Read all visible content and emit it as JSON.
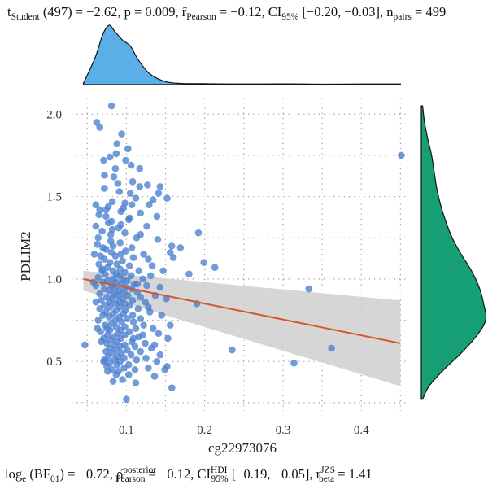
{
  "chart_data": {
    "type": "scatter",
    "xlabel": "cg22973076",
    "ylabel": "PDLIM2",
    "xlim": [
      0.03,
      0.46
    ],
    "ylim": [
      0.2,
      2.1
    ],
    "xticks": [
      0.1,
      0.2,
      0.3,
      0.4
    ],
    "yticks": [
      0.5,
      1.0,
      1.5,
      2.0
    ],
    "xtick_labels": [
      "0.1",
      "0.2",
      "0.3",
      "0.4"
    ],
    "ytick_labels": [
      "0.5",
      "1.0",
      "1.5",
      "2.0"
    ],
    "grid": true,
    "point_color": "#4a7fd0",
    "line_color": "#d2582a",
    "band_color": "#cfcfcf",
    "x_marginal_color": "#5ab0e6",
    "y_marginal_color": "#169e74",
    "regression": {
      "x": [
        0.045,
        0.45
      ],
      "y": [
        1.0,
        0.61
      ],
      "ci_lower": [
        0.93,
        0.35
      ],
      "ci_upper": [
        1.05,
        0.87
      ]
    },
    "x_density": {
      "x": [
        0.045,
        0.06,
        0.07,
        0.078,
        0.085,
        0.095,
        0.105,
        0.115,
        0.13,
        0.15,
        0.17,
        0.2,
        0.25,
        0.3,
        0.35,
        0.4,
        0.45
      ],
      "density": [
        0.02,
        0.45,
        0.85,
        1.0,
        0.9,
        0.75,
        0.65,
        0.42,
        0.18,
        0.05,
        0.02,
        0.015,
        0.01,
        0.012,
        0.008,
        0.01,
        0.01
      ]
    },
    "y_density": {
      "y": [
        0.27,
        0.35,
        0.45,
        0.55,
        0.65,
        0.75,
        0.85,
        0.95,
        1.05,
        1.15,
        1.25,
        1.35,
        1.45,
        1.55,
        1.65,
        1.75,
        1.85,
        1.95,
        2.05
      ],
      "density": [
        0.02,
        0.12,
        0.35,
        0.62,
        0.85,
        1.0,
        0.97,
        0.9,
        0.78,
        0.62,
        0.48,
        0.38,
        0.3,
        0.24,
        0.2,
        0.16,
        0.1,
        0.05,
        0.02
      ]
    },
    "points": [
      [
        0.081,
        2.05
      ],
      [
        0.062,
        1.95
      ],
      [
        0.066,
        1.92
      ],
      [
        0.094,
        1.88
      ],
      [
        0.088,
        1.82
      ],
      [
        0.102,
        1.79
      ],
      [
        0.087,
        1.76
      ],
      [
        0.079,
        1.74
      ],
      [
        0.099,
        1.72
      ],
      [
        0.071,
        1.72
      ],
      [
        0.106,
        1.69
      ],
      [
        0.117,
        1.67
      ],
      [
        0.086,
        1.67
      ],
      [
        0.072,
        1.63
      ],
      [
        0.108,
        1.59
      ],
      [
        0.089,
        1.58
      ],
      [
        0.127,
        1.57
      ],
      [
        0.143,
        1.56
      ],
      [
        0.072,
        1.55
      ],
      [
        0.091,
        1.53
      ],
      [
        0.141,
        1.52
      ],
      [
        0.152,
        1.49
      ],
      [
        0.112,
        1.49
      ],
      [
        0.134,
        1.48
      ],
      [
        0.082,
        1.47
      ],
      [
        0.098,
        1.46
      ],
      [
        0.107,
        1.45
      ],
      [
        0.061,
        1.45
      ],
      [
        0.077,
        1.44
      ],
      [
        0.096,
        1.43
      ],
      [
        0.074,
        1.42
      ],
      [
        0.066,
        1.42
      ],
      [
        0.093,
        1.41
      ],
      [
        0.118,
        1.4
      ],
      [
        0.065,
        1.39
      ],
      [
        0.074,
        1.38
      ],
      [
        0.104,
        1.37
      ],
      [
        0.103,
        1.36
      ],
      [
        0.081,
        1.35
      ],
      [
        0.077,
        1.34
      ],
      [
        0.093,
        1.33
      ],
      [
        0.061,
        1.32
      ],
      [
        0.09,
        1.31
      ],
      [
        0.082,
        1.3
      ],
      [
        0.069,
        1.29
      ],
      [
        0.098,
        1.28
      ],
      [
        0.192,
        1.28
      ],
      [
        0.08,
        1.27
      ],
      [
        0.118,
        1.27
      ],
      [
        0.064,
        1.25
      ],
      [
        0.14,
        1.24
      ],
      [
        0.08,
        1.23
      ],
      [
        0.092,
        1.22
      ],
      [
        0.063,
        1.21
      ],
      [
        0.083,
        1.2
      ],
      [
        0.07,
        1.19
      ],
      [
        0.107,
        1.19
      ],
      [
        0.074,
        1.18
      ],
      [
        0.099,
        1.17
      ],
      [
        0.081,
        1.16
      ],
      [
        0.156,
        1.16
      ],
      [
        0.093,
        1.15
      ],
      [
        0.067,
        1.14
      ],
      [
        0.086,
        1.14
      ],
      [
        0.109,
        1.13
      ],
      [
        0.072,
        1.12
      ],
      [
        0.128,
        1.12
      ],
      [
        0.095,
        1.11
      ],
      [
        0.079,
        1.1
      ],
      [
        0.199,
        1.1
      ],
      [
        0.16,
        1.13
      ],
      [
        0.088,
        1.09
      ],
      [
        0.065,
        1.09
      ],
      [
        0.104,
        1.08
      ],
      [
        0.133,
        1.08
      ],
      [
        0.213,
        1.07
      ],
      [
        0.076,
        1.07
      ],
      [
        0.092,
        1.06
      ],
      [
        0.083,
        1.05
      ],
      [
        0.069,
        1.05
      ],
      [
        0.116,
        1.05
      ],
      [
        0.098,
        1.04
      ],
      [
        0.087,
        1.03
      ],
      [
        0.18,
        1.03
      ],
      [
        0.073,
        1.03
      ],
      [
        0.106,
        1.02
      ],
      [
        0.091,
        1.02
      ],
      [
        0.064,
        1.01
      ],
      [
        0.083,
        1.0
      ],
      [
        0.121,
        1.0
      ],
      [
        0.095,
        1.0
      ],
      [
        0.076,
        0.99
      ],
      [
        0.101,
        0.99
      ],
      [
        0.087,
        0.98
      ],
      [
        0.07,
        0.98
      ],
      [
        0.11,
        0.97
      ],
      [
        0.094,
        0.97
      ],
      [
        0.081,
        0.96
      ],
      [
        0.061,
        0.96
      ],
      [
        0.126,
        0.96
      ],
      [
        0.099,
        0.95
      ],
      [
        0.085,
        0.95
      ],
      [
        0.072,
        0.94
      ],
      [
        0.107,
        0.94
      ],
      [
        0.091,
        0.93
      ],
      [
        0.333,
        0.94
      ],
      [
        0.078,
        0.93
      ],
      [
        0.114,
        0.92
      ],
      [
        0.097,
        0.92
      ],
      [
        0.084,
        0.91
      ],
      [
        0.066,
        0.91
      ],
      [
        0.102,
        0.9
      ],
      [
        0.089,
        0.9
      ],
      [
        0.075,
        0.89
      ],
      [
        0.118,
        0.89
      ],
      [
        0.095,
        0.88
      ],
      [
        0.082,
        0.88
      ],
      [
        0.068,
        0.87
      ],
      [
        0.108,
        0.87
      ],
      [
        0.091,
        0.86
      ],
      [
        0.078,
        0.86
      ],
      [
        0.124,
        0.86
      ],
      [
        0.098,
        0.85
      ],
      [
        0.086,
        0.85
      ],
      [
        0.072,
        0.84
      ],
      [
        0.19,
        0.85
      ],
      [
        0.104,
        0.84
      ],
      [
        0.092,
        0.83
      ],
      [
        0.079,
        0.83
      ],
      [
        0.115,
        0.82
      ],
      [
        0.066,
        0.82
      ],
      [
        0.099,
        0.81
      ],
      [
        0.087,
        0.81
      ],
      [
        0.074,
        0.8
      ],
      [
        0.13,
        0.8
      ],
      [
        0.096,
        0.79
      ],
      [
        0.083,
        0.79
      ],
      [
        0.108,
        0.78
      ],
      [
        0.07,
        0.78
      ],
      [
        0.091,
        0.77
      ],
      [
        0.078,
        0.77
      ],
      [
        0.118,
        0.76
      ],
      [
        0.101,
        0.76
      ],
      [
        0.086,
        0.75
      ],
      [
        0.064,
        0.75
      ],
      [
        0.109,
        0.74
      ],
      [
        0.094,
        0.74
      ],
      [
        0.081,
        0.73
      ],
      [
        0.073,
        0.72
      ],
      [
        0.122,
        0.72
      ],
      [
        0.098,
        0.71
      ],
      [
        0.087,
        0.71
      ],
      [
        0.075,
        0.7
      ],
      [
        0.112,
        0.7
      ],
      [
        0.093,
        0.69
      ],
      [
        0.079,
        0.69
      ],
      [
        0.067,
        0.68
      ],
      [
        0.104,
        0.68
      ],
      [
        0.089,
        0.67
      ],
      [
        0.141,
        0.67
      ],
      [
        0.076,
        0.66
      ],
      [
        0.098,
        0.66
      ],
      [
        0.084,
        0.65
      ],
      [
        0.116,
        0.65
      ],
      [
        0.071,
        0.64
      ],
      [
        0.153,
        0.64
      ],
      [
        0.093,
        0.64
      ],
      [
        0.08,
        0.63
      ],
      [
        0.107,
        0.62
      ],
      [
        0.088,
        0.62
      ],
      [
        0.124,
        0.61
      ],
      [
        0.075,
        0.61
      ],
      [
        0.098,
        0.6
      ],
      [
        0.084,
        0.6
      ],
      [
        0.047,
        0.6
      ],
      [
        0.111,
        0.59
      ],
      [
        0.092,
        0.59
      ],
      [
        0.079,
        0.58
      ],
      [
        0.132,
        0.58
      ],
      [
        0.101,
        0.57
      ],
      [
        0.235,
        0.57
      ],
      [
        0.087,
        0.57
      ],
      [
        0.362,
        0.58
      ],
      [
        0.074,
        0.56
      ],
      [
        0.118,
        0.56
      ],
      [
        0.094,
        0.55
      ],
      [
        0.082,
        0.55
      ],
      [
        0.106,
        0.54
      ],
      [
        0.143,
        0.54
      ],
      [
        0.089,
        0.53
      ],
      [
        0.077,
        0.53
      ],
      [
        0.125,
        0.52
      ],
      [
        0.097,
        0.52
      ],
      [
        0.085,
        0.51
      ],
      [
        0.113,
        0.51
      ],
      [
        0.071,
        0.5
      ],
      [
        0.092,
        0.5
      ],
      [
        0.139,
        0.5
      ],
      [
        0.079,
        0.49
      ],
      [
        0.314,
        0.49
      ],
      [
        0.103,
        0.48
      ],
      [
        0.088,
        0.48
      ],
      [
        0.152,
        0.47
      ],
      [
        0.075,
        0.47
      ],
      [
        0.097,
        0.46
      ],
      [
        0.128,
        0.46
      ],
      [
        0.082,
        0.45
      ],
      [
        0.111,
        0.45
      ],
      [
        0.149,
        0.45
      ],
      [
        0.09,
        0.44
      ],
      [
        0.076,
        0.44
      ],
      [
        0.103,
        0.42
      ],
      [
        0.087,
        0.42
      ],
      [
        0.136,
        0.41
      ],
      [
        0.095,
        0.39
      ],
      [
        0.083,
        0.38
      ],
      [
        0.112,
        0.37
      ],
      [
        0.158,
        0.34
      ],
      [
        0.1,
        0.27
      ],
      [
        0.451,
        1.75
      ],
      [
        0.158,
        1.2
      ],
      [
        0.169,
        1.19
      ],
      [
        0.143,
        0.95
      ],
      [
        0.137,
        0.9
      ],
      [
        0.128,
        0.83
      ],
      [
        0.145,
        0.78
      ],
      [
        0.121,
        0.66
      ],
      [
        0.134,
        0.7
      ],
      [
        0.139,
        1.38
      ],
      [
        0.129,
        1.45
      ],
      [
        0.117,
        1.56
      ],
      [
        0.126,
        1.32
      ],
      [
        0.147,
        1.05
      ],
      [
        0.151,
        0.88
      ],
      [
        0.136,
        0.6
      ],
      [
        0.156,
        0.72
      ],
      [
        0.069,
        1.06
      ],
      [
        0.061,
        0.86
      ],
      [
        0.063,
        0.7
      ],
      [
        0.059,
        1.15
      ],
      [
        0.058,
        0.98
      ],
      [
        0.072,
        0.51
      ],
      [
        0.068,
        0.62
      ],
      [
        0.113,
        1.25
      ],
      [
        0.105,
        1.52
      ],
      [
        0.084,
        1.62
      ],
      [
        0.131,
        1.02
      ],
      [
        0.122,
        1.15
      ],
      [
        0.114,
        0.97
      ],
      [
        0.109,
        0.64
      ]
    ]
  },
  "top_stat": "t_Student (497) = −2.62, p = 0.009, r̂_Pearson = −0.12, CI_95% [−0.20, −0.03], n_pairs = 499",
  "bottom_stat": "log_e (BF_01) = −0.72, ρ̂^posterior_Pearson = −0.12, CI^HDI_95% [−0.19, −0.05], r^JZS_beta = 1.41"
}
